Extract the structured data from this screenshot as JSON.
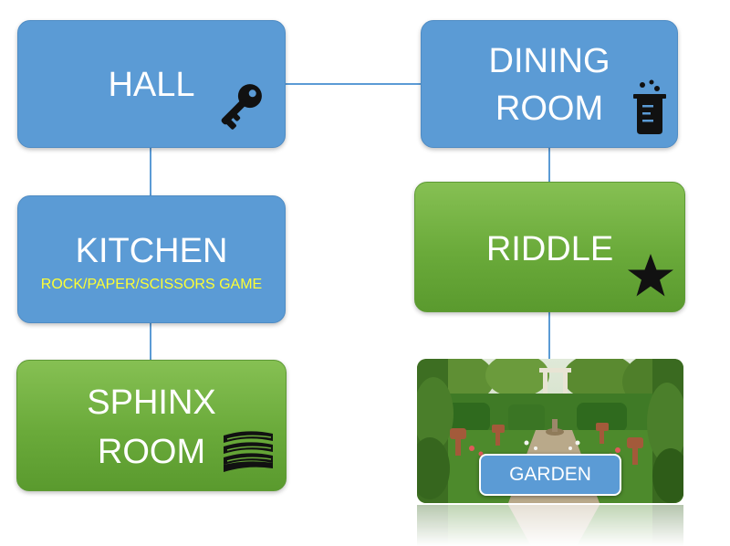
{
  "nodes": {
    "hall": {
      "title": "HALL",
      "icon": "key-icon"
    },
    "dining_room": {
      "title_line1": "DINING",
      "title_line2": "ROOM",
      "icon": "chemistry-beaker-icon"
    },
    "kitchen": {
      "title": "KITCHEN",
      "subtitle": "ROCK/PAPER/SCISSORS GAME"
    },
    "riddle": {
      "title": "RIDDLE",
      "icon": "star-icon"
    },
    "sphinx_room": {
      "title_line1": "SPHINX",
      "title_line2": "ROOM",
      "icon": "books-icon"
    },
    "garden": {
      "title": "GARDEN",
      "image": "garden-photo"
    }
  },
  "colors": {
    "blue_box": "#5b9bd5",
    "green_box": "#70ad47",
    "subtitle_text": "#ffff33",
    "connector": "#5b9bd5"
  }
}
